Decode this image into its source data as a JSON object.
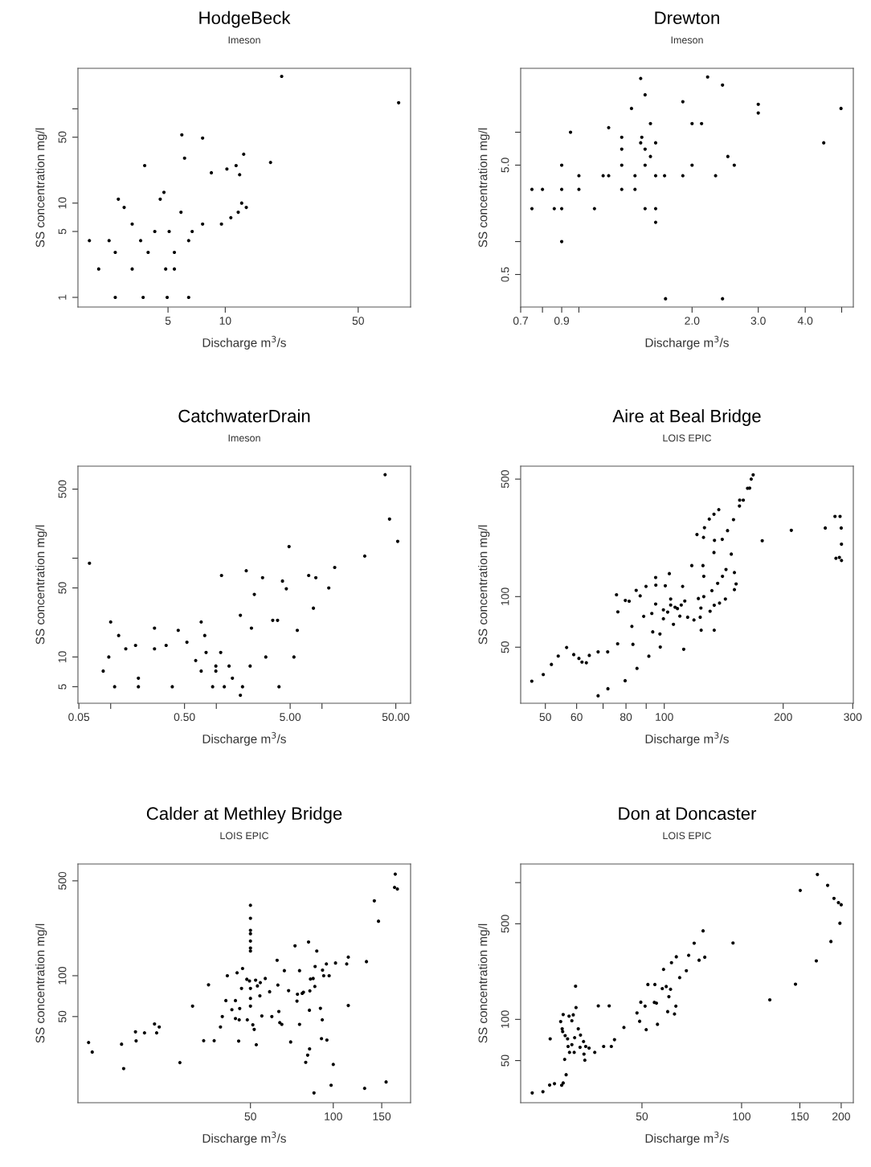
{
  "chart_data": [
    {
      "type": "scatter",
      "title": "HodgeBeck",
      "subtitle": "Imeson",
      "xlabel": "Discharge m$^{3}$/s",
      "ylabel": "SS concentration mg/l",
      "log": "xy",
      "marker": "circle",
      "color": "#000000",
      "xlim": [
        1.68,
        94.3
      ],
      "ylim": [
        0.79,
        269
      ],
      "xticks": [
        5,
        10,
        50
      ],
      "yticks": [
        1,
        5,
        10,
        50,
        {
          "value": 100,
          "label": null
        }
      ],
      "x": [
        1.93,
        2.45,
        2.64,
        2.16,
        2.64,
        2.74,
        2.94,
        3.24,
        3.24,
        3.59,
        3.7,
        3.77,
        3.93,
        4.26,
        4.55,
        4.76,
        4.86,
        4.95,
        5.07,
        5.4,
        5.4,
        5.91,
        5.85,
        6.11,
        6.42,
        6.42,
        6.7,
        7.6,
        7.6,
        8.45,
        9.55,
        10.2,
        10.7,
        11.4,
        11.7,
        11.9,
        12.2,
        12.5,
        12.9,
        17.3,
        19.8,
        81.6
      ],
      "values": [
        4,
        4,
        3,
        2,
        1,
        11,
        9,
        6,
        2,
        4,
        1,
        25,
        3,
        5,
        11,
        13,
        2,
        1,
        5,
        3,
        2,
        53,
        8,
        30,
        4,
        1,
        5,
        49,
        6,
        21,
        6,
        23,
        7,
        25,
        8,
        20,
        10,
        33,
        9,
        27,
        221,
        116
      ]
    },
    {
      "type": "scatter",
      "title": "Drewton",
      "subtitle": "Imeson",
      "xlabel": "Discharge m$^{3}$/s",
      "ylabel": "SS concentration mg/l",
      "log": "xy",
      "marker": "circle",
      "color": "#000000",
      "xlim": [
        0.7,
        5.37
      ],
      "ylim": [
        0.252,
        38.4
      ],
      "xticks": [
        0.7,
        {
          "value": 0.8,
          "label": null
        },
        0.9,
        {
          "value": 1,
          "label": null
        },
        {
          "value": 2,
          "label": "2.0"
        },
        {
          "value": 3,
          "label": "3.0"
        },
        {
          "value": 4,
          "label": "4.0"
        },
        {
          "value": 5,
          "label": null
        }
      ],
      "yticks": [
        0.5,
        {
          "value": 1,
          "label": null
        },
        {
          "value": 5,
          "label": "5.0"
        },
        {
          "value": 10,
          "label": null
        }
      ],
      "x": [
        0.75,
        0.75,
        0.8,
        0.86,
        0.9,
        0.9,
        0.9,
        0.9,
        0.95,
        1.0,
        1.0,
        1.1,
        1.16,
        1.2,
        1.2,
        1.3,
        1.3,
        1.3,
        1.3,
        1.38,
        1.41,
        1.41,
        1.46,
        1.46,
        1.47,
        1.5,
        1.5,
        1.5,
        1.5,
        1.55,
        1.55,
        1.6,
        1.6,
        1.6,
        1.6,
        1.69,
        1.7,
        1.89,
        1.89,
        2.0,
        2.0,
        2.12,
        2.2,
        2.31,
        2.41,
        2.41,
        2.49,
        2.59,
        3.0,
        3.0,
        4.48,
        4.98
      ],
      "values": [
        3,
        2,
        3,
        2,
        5,
        3,
        2,
        1,
        10,
        4,
        3,
        2,
        4,
        11,
        4,
        9,
        7,
        5,
        3,
        16.5,
        4,
        3,
        31,
        8,
        9,
        22,
        7,
        5,
        2,
        12,
        6,
        8,
        4,
        2,
        1.5,
        4,
        0.3,
        19,
        4,
        12,
        5,
        12,
        32,
        4,
        27,
        0.3,
        6,
        5,
        18,
        15,
        8,
        16.5
      ]
    },
    {
      "type": "scatter",
      "title": "CatchwaterDrain",
      "subtitle": "Imeson",
      "xlabel": "Discharge m$^{3}$/s",
      "ylabel": "SS concentration mg/l",
      "log": "xy",
      "marker": "circle",
      "color": "#000000",
      "xlim": [
        0.049,
        69
      ],
      "ylim": [
        3.4,
        854
      ],
      "xticks": [
        {
          "value": 0.05,
          "label": "0.05"
        },
        {
          "value": 0.1,
          "label": null
        },
        {
          "value": 0.5,
          "label": "0.50"
        },
        {
          "value": 1,
          "label": null
        },
        {
          "value": 5,
          "label": "5.00"
        },
        {
          "value": 10,
          "label": null
        },
        {
          "value": 50,
          "label": "50.00"
        }
      ],
      "yticks": [
        5,
        10,
        50,
        {
          "value": 100,
          "label": null
        },
        500
      ],
      "x": [
        0.063,
        0.085,
        0.096,
        0.1,
        0.109,
        0.119,
        0.139,
        0.172,
        0.183,
        0.183,
        0.26,
        0.26,
        0.335,
        0.383,
        0.436,
        0.527,
        0.638,
        0.719,
        0.719,
        0.777,
        0.8,
        0.923,
        0.99,
        0.99,
        1.1,
        1.12,
        1.19,
        1.32,
        1.42,
        1.69,
        1.69,
        1.77,
        1.92,
        2.09,
        2.15,
        2.29,
        2.74,
        2.94,
        3.42,
        3.8,
        3.92,
        4.23,
        4.6,
        4.88,
        5.43,
        5.84,
        7.49,
        8.3,
        8.75,
        11.6,
        13.2,
        25.4,
        39.6,
        43.6,
        52.1
      ],
      "values": [
        89,
        7.2,
        10,
        22.6,
        5,
        16.5,
        12.1,
        13.1,
        6.1,
        5,
        19.6,
        12.1,
        13.1,
        5,
        18.6,
        14.1,
        9.2,
        22.6,
        7.2,
        16.5,
        11.1,
        5,
        8.1,
        7.2,
        11.1,
        66.8,
        5,
        8.1,
        6.1,
        26.4,
        4.1,
        5,
        74.6,
        8.1,
        19.6,
        43,
        63.5,
        10,
        23.5,
        23.5,
        5,
        58.7,
        49,
        131,
        10,
        18.6,
        66.8,
        31.2,
        63.5,
        50,
        80.6,
        105,
        700,
        249,
        148
      ]
    },
    {
      "type": "scatter",
      "title": "Aire at Beal Bridge",
      "subtitle": "LOIS EPIC",
      "xlabel": "Discharge m$^{3}$/s",
      "ylabel": "SS concentration mg/l",
      "log": "xy",
      "marker": "circle",
      "color": "#000000",
      "xlim": [
        43.3,
        301
      ],
      "ylim": [
        23.2,
        597
      ],
      "xticks": [
        50,
        60,
        {
          "value": 70,
          "label": null
        },
        80,
        {
          "value": 90,
          "label": null
        },
        100,
        200,
        300
      ],
      "yticks": [
        50,
        100,
        500
      ],
      "x": [
        46.2,
        49.4,
        51.8,
        53.9,
        56.6,
        59.0,
        60.8,
        61.9,
        63.5,
        64.6,
        68.0,
        68.0,
        71.9,
        72.0,
        75.7,
        76.3,
        76.2,
        79.6,
        79.7,
        81.5,
        82.8,
        83.3,
        84.9,
        85.3,
        86.9,
        88.7,
        89.9,
        91.4,
        93.0,
        93.5,
        95.1,
        95.2,
        95.1,
        97.5,
        97.7,
        99.5,
        99.5,
        100.6,
        102,
        103,
        103.8,
        103.8,
        105.5,
        106.5,
        108,
        109.5,
        110.4,
        111.3,
        112,
        112.7,
        114.6,
        117.4,
        118.9,
        121,
        122,
        123.3,
        123.8,
        124,
        125.3,
        125.7,
        125.9,
        125.9,
        126.4,
        130,
        130.6,
        132,
        133.6,
        133.6,
        134,
        133.8,
        133.8,
        136.5,
        137.4,
        138,
        140.2,
        140.4,
        142.8,
        143.3,
        144.6,
        147.8,
        149.7,
        150.5,
        150.5,
        152,
        155,
        155.2,
        158.5,
        162.5,
        164.5,
        166,
        167.9,
        177,
        209.7,
        255.6,
        270.5,
        278.6,
        280.5,
        280.9,
        272,
        277.5,
        281
      ],
      "values": [
        31.4,
        34.4,
        39.5,
        44.3,
        49.8,
        45.2,
        42.9,
        40.8,
        40.4,
        44.7,
        46.9,
        25.7,
        46.9,
        28.3,
        102.6,
        81.2,
        52.4,
        31.6,
        94.9,
        93.9,
        66.5,
        52.0,
        109,
        37.4,
        101,
        76.3,
        115,
        44.2,
        79.4,
        61.7,
        130,
        117,
        90.4,
        59.9,
        50.1,
        73.8,
        83.4,
        116,
        80.9,
        137,
        96.7,
        89.1,
        68.4,
        86.5,
        84.9,
        76.5,
        89.1,
        115,
        48.6,
        94.2,
        75.4,
        153,
        72.6,
        234,
        97.4,
        75.4,
        85.5,
        63.1,
        153,
        225,
        100,
        132,
        257,
        289,
        81.8,
        108.5,
        309,
        183,
        216,
        63.1,
        88.8,
        120,
        329,
        91.5,
        219,
        132,
        96.7,
        145,
        247,
        179,
        287,
        139,
        110,
        119,
        346,
        375,
        375,
        441,
        442,
        500,
        530,
        215,
        248,
        256,
        300,
        300,
        256,
        205,
        169,
        171,
        164
      ]
    },
    {
      "type": "scatter",
      "title": "Calder at Methley Bridge",
      "subtitle": "LOIS EPIC",
      "xlabel": "Discharge m$^{3}$/s",
      "ylabel": "SS concentration mg/l",
      "log": "xy",
      "marker": "circle",
      "color": "#000000",
      "xlim": [
        11.8,
        191
      ],
      "ylim": [
        11.6,
        665
      ],
      "xticks": [
        50,
        100,
        150
      ],
      "yticks": [
        50,
        100,
        500
      ],
      "x": [
        12.9,
        13.3,
        17.0,
        17.3,
        19.1,
        19.2,
        20.6,
        22.4,
        22.8,
        23.3,
        27.7,
        30.8,
        33.8,
        35.2,
        36.9,
        38.9,
        39.5,
        40.7,
        41.2,
        42.8,
        44.1,
        44.1,
        44.7,
        45.3,
        45.5,
        45.7,
        46.4,
        46.8,
        48.5,
        48.7,
        49.6,
        50,
        50,
        50,
        50,
        50,
        50,
        50,
        50,
        50,
        50,
        51,
        51.6,
        52.5,
        52.2,
        53,
        54.1,
        54.3,
        55,
        56.6,
        58.7,
        59.8,
        62.5,
        62.9,
        63.4,
        63.9,
        65,
        66.4,
        68.8,
        70,
        72.6,
        73.8,
        74.1,
        75.4,
        75.4,
        77.1,
        77.9,
        79.4,
        80.7,
        82,
        81.3,
        81.9,
        82.2,
        82.6,
        84.5,
        85.1,
        85.7,
        85.9,
        87.1,
        89.8,
        90.6,
        91.2,
        91.4,
        92.3,
        94.4,
        94.8,
        96.6,
        98.2,
        100,
        101.9,
        111.9,
        113.4,
        113.4,
        130,
        132,
        141,
        146,
        155.6,
        168,
        167,
        171
      ],
      "values": [
        32.2,
        27.4,
        31.3,
        20.7,
        38.6,
        33.1,
        37.9,
        44.1,
        37.9,
        41.9,
        22.9,
        59.7,
        33.2,
        85.7,
        33.2,
        41.9,
        50,
        65.6,
        100,
        56.2,
        65.6,
        48.4,
        105,
        33.0,
        47.3,
        57.3,
        80.6,
        113,
        94.1,
        47.3,
        91.5,
        330,
        265,
        216,
        204,
        180,
        160,
        152,
        80.6,
        68.1,
        59.7,
        43.5,
        40.2,
        31.0,
        92.7,
        84.1,
        71.1,
        88.9,
        50.5,
        95.4,
        76.2,
        50,
        130,
        85.3,
        54.5,
        45.1,
        43.8,
        109,
        77.6,
        32.5,
        166,
        65,
        73.1,
        109,
        43.8,
        74.1,
        75.5,
        23,
        26,
        28.9,
        177,
        55.7,
        77.3,
        94.5,
        95.4,
        13.7,
        83.3,
        117,
        152,
        57.5,
        34.4,
        47.3,
        110,
        100,
        122,
        33.6,
        100,
        15.6,
        22.2,
        124,
        122,
        137,
        60.3,
        14.8,
        127,
        356,
        252,
        16.5,
        560,
        447,
        435
      ]
    },
    {
      "type": "scatter",
      "title": "Don at Doncaster",
      "subtitle": "LOIS EPIC",
      "xlabel": "Discharge m$^{3}$/s",
      "ylabel": "SS concentration mg/l",
      "log": "xy",
      "marker": "circle",
      "color": "#000000",
      "xlim": [
        21.5,
        217.6
      ],
      "ylim": [
        24.6,
        1368
      ],
      "xticks": [
        50,
        100,
        150,
        200
      ],
      "yticks": [
        50,
        100,
        500,
        {
          "value": 1000,
          "label": null
        }
      ],
      "x": [
        23.3,
        25.1,
        26.3,
        27.2,
        28.6,
        28.9,
        29.5,
        29.2,
        26.4,
        28.4,
        28.9,
        28.7,
        28.8,
        29.3,
        29.8,
        29.9,
        30.1,
        30.2,
        30.7,
        30.7,
        31.2,
        31.0,
        31.3,
        31.5,
        31.6,
        32.1,
        32.5,
        32.6,
        33.3,
        33.4,
        33.6,
        33.8,
        34.6,
        36.0,
        36.9,
        38.3,
        39.8,
        40.4,
        41.3,
        44.1,
        48.3,
        49.2,
        49.6,
        51.1,
        51.5,
        52.1,
        54.7,
        54.5,
        55.3,
        55.7,
        57.6,
        58.1,
        59.2,
        59.8,
        60.3,
        61.0,
        61.4,
        62.7,
        63.3,
        63.5,
        65.0,
        68.1,
        69.2,
        71.9,
        74.4,
        76.5,
        77.4,
        94.2,
        121.7,
        145.5,
        150.4,
        168.2,
        169.5,
        182,
        186.2,
        190.2,
        196.2,
        200,
        198.2
      ],
      "values": [
        29.0,
        29.6,
        33.1,
        33.9,
        33.0,
        34.3,
        39.4,
        51,
        72.1,
        96.4,
        108.5,
        85.3,
        81.5,
        76.1,
        72.1,
        63.4,
        105.6,
        57.4,
        97.8,
        65.4,
        57.4,
        108,
        73.5,
        175,
        122,
        85.3,
        62.5,
        76.8,
        68.9,
        55.8,
        50.3,
        63.4,
        61.7,
        57.4,
        125.6,
        63.4,
        125.6,
        63.4,
        71.1,
        87.3,
        111.5,
        96.9,
        133.6,
        125,
        84.1,
        180,
        180,
        133.2,
        131.5,
        92.1,
        168,
        232,
        174,
        114,
        146.6,
        166,
        260,
        109.5,
        125,
        287,
        202,
        227,
        294,
        361,
        271,
        444,
        285,
        362,
        139,
        181,
        877,
        268,
        1146,
        955,
        371,
        767,
        714,
        689,
        505
      ]
    }
  ]
}
